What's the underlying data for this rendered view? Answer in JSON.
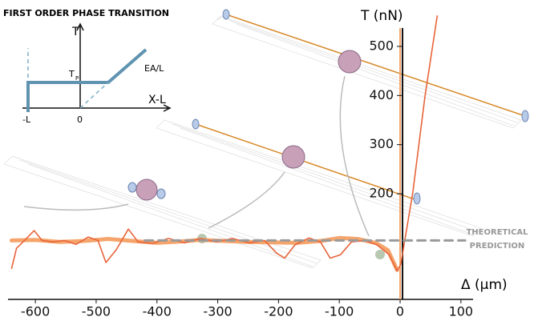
{
  "chart_data": {
    "type": "line",
    "x_label": "Δ (µm)",
    "y_label": "T (nN)",
    "xlim": [
      -645,
      120
    ],
    "ylim": [
      -15,
      570
    ],
    "xticks": [
      -600,
      -500,
      -400,
      -300,
      -200,
      -100,
      0,
      100
    ],
    "yticks": [
      200,
      300,
      400,
      500
    ],
    "annotation": [
      "THEORETICAL",
      "PREDICTION"
    ],
    "series": [
      {
        "color": "#f5a56c",
        "width": 5,
        "dash": false,
        "x": [
          -639,
          -600,
          -560,
          -520,
          -480,
          -440,
          -400,
          -360,
          -330,
          -290,
          -250,
          -210,
          -170,
          -130,
          -100,
          -70,
          -40,
          -20,
          -5
        ],
        "values": [
          105,
          106,
          102,
          104,
          108,
          104,
          100,
          103,
          106,
          104,
          102,
          101,
          100,
          104,
          110,
          108,
          100,
          85,
          45
        ]
      },
      {
        "color": "#e8643a",
        "width": 1.6,
        "dash": false,
        "x": [
          -639,
          -631,
          -618,
          -602,
          -589,
          -572,
          -552,
          -533,
          -513,
          -497,
          -484,
          -467,
          -447,
          -431,
          -407,
          -381,
          -355,
          -328,
          -302,
          -276,
          -249,
          -223,
          -203,
          -190,
          -173,
          -150,
          -131,
          -115,
          -98,
          -80,
          -58,
          -38,
          -18,
          -5,
          1,
          21,
          41,
          61
        ],
        "values": [
          48,
          89,
          105,
          125,
          105,
          102,
          105,
          97,
          112,
          105,
          60,
          86,
          128,
          102,
          99,
          109,
          100,
          109,
          102,
          109,
          100,
          105,
          79,
          69,
          96,
          110,
          102,
          69,
          76,
          102,
          105,
          96,
          76,
          43,
          56,
          203,
          399,
          562
        ]
      },
      {
        "color": "#9a9a9a",
        "width": 3,
        "dash": true,
        "x": [
          -420,
          107
        ],
        "values": [
          105,
          105
        ]
      }
    ],
    "inset": {
      "title": "FIRST ORDER PHASE TRANSITION",
      "y_label": "T",
      "x_label": "X-L",
      "slope_label": "EA/L",
      "plateau_label": "T",
      "plateau_sub": "P",
      "ticks": [
        "-L",
        "0"
      ]
    }
  }
}
